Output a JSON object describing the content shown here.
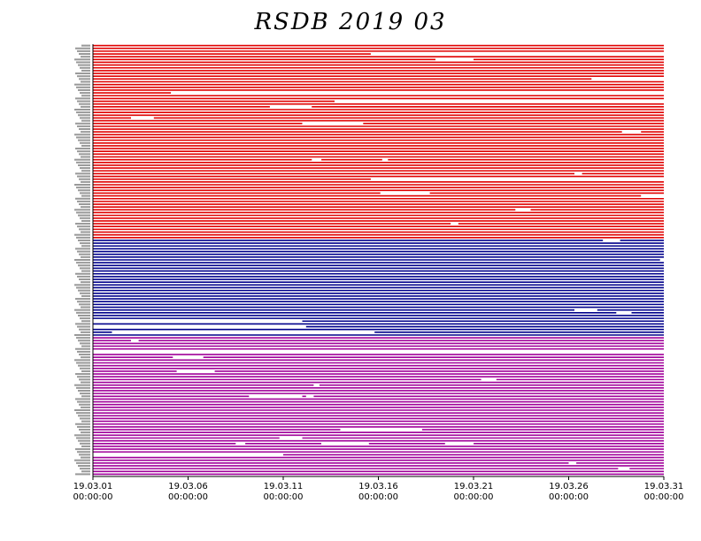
{
  "chart_data": {
    "type": "timeline",
    "title": "RSDB  2019  03",
    "xlabel": "",
    "ylabel": "",
    "x_range": [
      "2019-03-01 00:00:00",
      "2019-03-31 00:00:00"
    ],
    "x_ticks": [
      {
        "date": "19.03.01",
        "time": "00:00:00",
        "day": 1
      },
      {
        "date": "19.03.06",
        "time": "00:00:00",
        "day": 6
      },
      {
        "date": "19.03.11",
        "time": "00:00:00",
        "day": 11
      },
      {
        "date": "19.03.16",
        "time": "00:00:00",
        "day": 16
      },
      {
        "date": "19.03.21",
        "time": "00:00:00",
        "day": 21
      },
      {
        "date": "19.03.26",
        "time": "00:00:00",
        "day": 26
      },
      {
        "date": "19.03.31",
        "time": "00:00:00",
        "day": 31
      }
    ],
    "groups": [
      {
        "color": "#e00000",
        "row_count": 70
      },
      {
        "color": "#00008b",
        "row_count": 35
      },
      {
        "color": "#a0009a",
        "row_count": 50
      }
    ],
    "gaps": [
      {
        "group": 0,
        "row": 3,
        "start_day": 15.6,
        "end_day": 31
      },
      {
        "group": 0,
        "row": 5,
        "start_day": 19.0,
        "end_day": 21.0
      },
      {
        "group": 0,
        "row": 12,
        "start_day": 27.2,
        "end_day": 31
      },
      {
        "group": 0,
        "row": 17,
        "start_day": 5.1,
        "end_day": 31
      },
      {
        "group": 0,
        "row": 20,
        "start_day": 13.7,
        "end_day": 31
      },
      {
        "group": 0,
        "row": 22,
        "start_day": 10.3,
        "end_day": 12.5
      },
      {
        "group": 0,
        "row": 26,
        "start_day": 3.0,
        "end_day": 4.2
      },
      {
        "group": 0,
        "row": 28,
        "start_day": 12.0,
        "end_day": 15.2
      },
      {
        "group": 0,
        "row": 31,
        "start_day": 28.8,
        "end_day": 29.8
      },
      {
        "group": 0,
        "row": 41,
        "start_day": 12.5,
        "end_day": 13.0
      },
      {
        "group": 0,
        "row": 41,
        "start_day": 16.2,
        "end_day": 16.5
      },
      {
        "group": 0,
        "row": 46,
        "start_day": 26.3,
        "end_day": 26.7
      },
      {
        "group": 0,
        "row": 48,
        "start_day": 15.6,
        "end_day": 31
      },
      {
        "group": 0,
        "row": 53,
        "start_day": 16.1,
        "end_day": 18.7
      },
      {
        "group": 0,
        "row": 54,
        "start_day": 29.8,
        "end_day": 31
      },
      {
        "group": 0,
        "row": 59,
        "start_day": 23.2,
        "end_day": 24.0
      },
      {
        "group": 0,
        "row": 64,
        "start_day": 19.8,
        "end_day": 20.2
      },
      {
        "group": 1,
        "row": 0,
        "start_day": 27.8,
        "end_day": 28.7
      },
      {
        "group": 1,
        "row": 7,
        "start_day": 30.8,
        "end_day": 31
      },
      {
        "group": 1,
        "row": 25,
        "start_day": 26.3,
        "end_day": 27.5
      },
      {
        "group": 1,
        "row": 26,
        "start_day": 28.5,
        "end_day": 29.3
      },
      {
        "group": 1,
        "row": 29,
        "start_day": 1.0,
        "end_day": 12.0
      },
      {
        "group": 1,
        "row": 31,
        "start_day": 1.0,
        "end_day": 12.2
      },
      {
        "group": 1,
        "row": 33,
        "start_day": 2.0,
        "end_day": 15.8
      },
      {
        "group": 2,
        "row": 1,
        "start_day": 3.0,
        "end_day": 3.4
      },
      {
        "group": 2,
        "row": 5,
        "start_day": 1.0,
        "end_day": 31
      },
      {
        "group": 2,
        "row": 7,
        "start_day": 5.2,
        "end_day": 6.8
      },
      {
        "group": 2,
        "row": 12,
        "start_day": 5.4,
        "end_day": 7.4
      },
      {
        "group": 2,
        "row": 15,
        "start_day": 21.4,
        "end_day": 22.2
      },
      {
        "group": 2,
        "row": 17,
        "start_day": 12.6,
        "end_day": 12.9
      },
      {
        "group": 2,
        "row": 21,
        "start_day": 9.2,
        "end_day": 12.0
      },
      {
        "group": 2,
        "row": 21,
        "start_day": 12.2,
        "end_day": 12.6
      },
      {
        "group": 2,
        "row": 33,
        "start_day": 14.0,
        "end_day": 18.3
      },
      {
        "group": 2,
        "row": 36,
        "start_day": 10.8,
        "end_day": 12.0
      },
      {
        "group": 2,
        "row": 38,
        "start_day": 8.5,
        "end_day": 9.0
      },
      {
        "group": 2,
        "row": 38,
        "start_day": 13.0,
        "end_day": 15.5
      },
      {
        "group": 2,
        "row": 38,
        "start_day": 19.5,
        "end_day": 21.0
      },
      {
        "group": 2,
        "row": 42,
        "start_day": 1.0,
        "end_day": 11.0
      },
      {
        "group": 2,
        "row": 45,
        "start_day": 26.0,
        "end_day": 26.4
      },
      {
        "group": 2,
        "row": 47,
        "start_day": 28.6,
        "end_day": 29.2
      }
    ]
  }
}
